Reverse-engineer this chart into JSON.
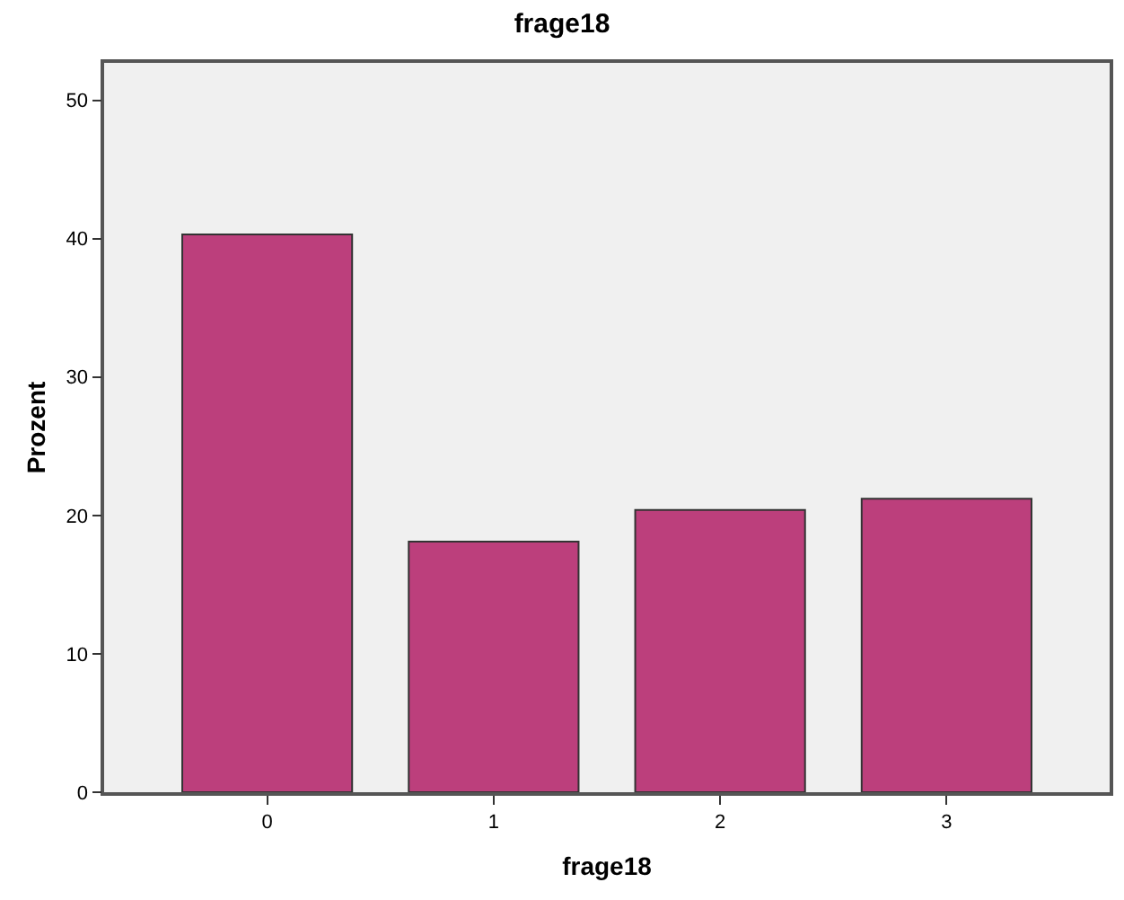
{
  "chart_data": {
    "type": "bar",
    "title": "frage18",
    "xlabel": "frage18",
    "ylabel": "Prozent",
    "categories": [
      "0",
      "1",
      "2",
      "3"
    ],
    "values": [
      40.3,
      18.1,
      20.4,
      21.2
    ],
    "color": "#bc3f7c",
    "ylim": [
      0,
      52.7
    ],
    "yticks": [
      0,
      10,
      20,
      30,
      40,
      50
    ],
    "grid": false
  }
}
